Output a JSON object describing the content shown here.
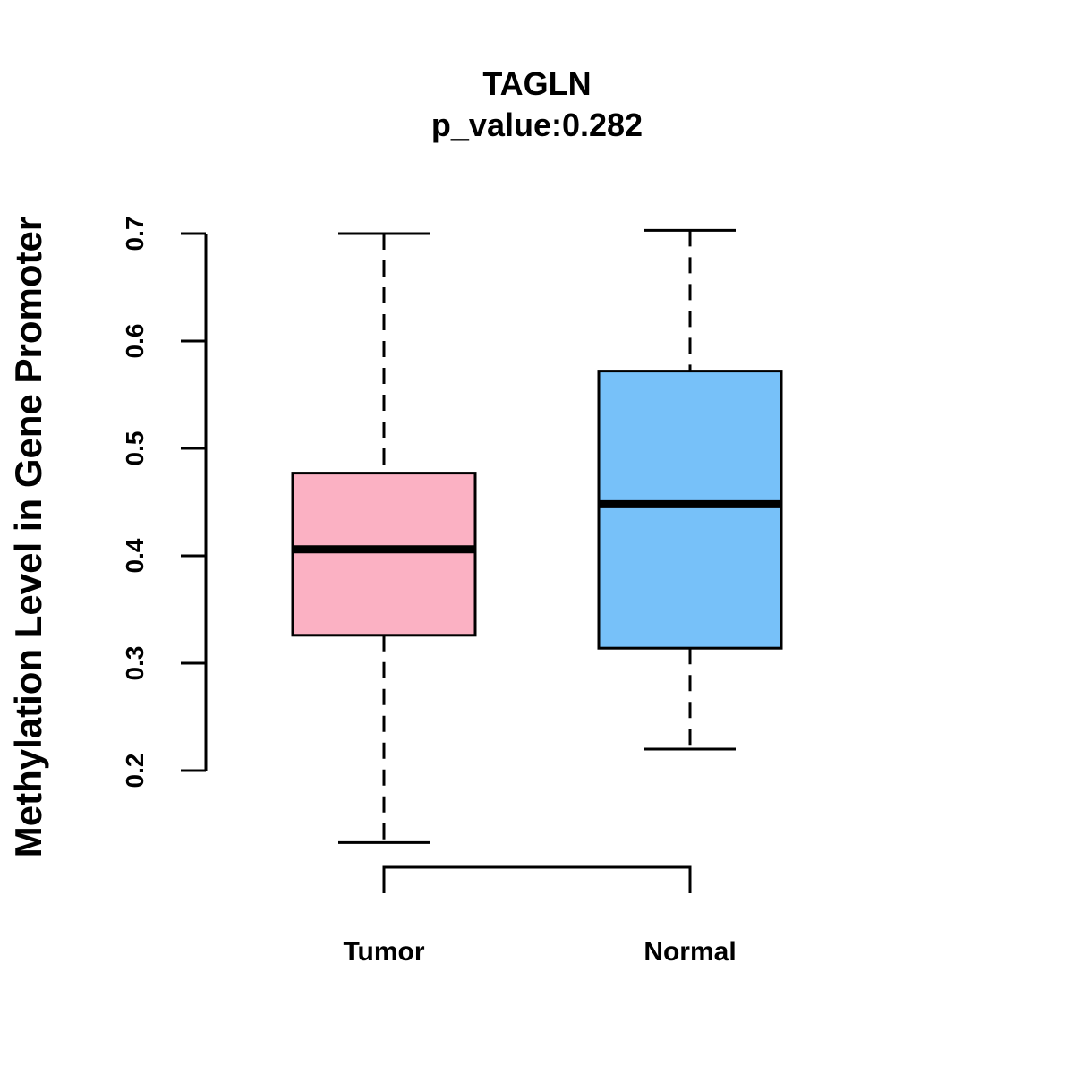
{
  "chart_data": {
    "type": "boxplot",
    "title": "TAGLN",
    "subtitle": "p_value:0.282",
    "xlabel": "",
    "ylabel": "Methylation Level in Gene Promoter",
    "ylim": [
      0.2,
      0.7
    ],
    "yticks": [
      0.2,
      0.3,
      0.4,
      0.5,
      0.6,
      0.7
    ],
    "ytick_labels": [
      "0.2",
      "0.3",
      "0.4",
      "0.5",
      "0.6",
      "0.7"
    ],
    "categories": [
      "Tumor",
      "Normal"
    ],
    "series": [
      {
        "category": "Tumor",
        "min": 0.133,
        "q1": 0.326,
        "median": 0.406,
        "q3": 0.477,
        "max": 0.7,
        "color": "#FBB1C3"
      },
      {
        "category": "Normal",
        "min": 0.22,
        "q1": 0.314,
        "median": 0.448,
        "q3": 0.572,
        "max": 0.703,
        "color": "#77C1F9"
      }
    ],
    "grid": false,
    "legend": "none"
  }
}
